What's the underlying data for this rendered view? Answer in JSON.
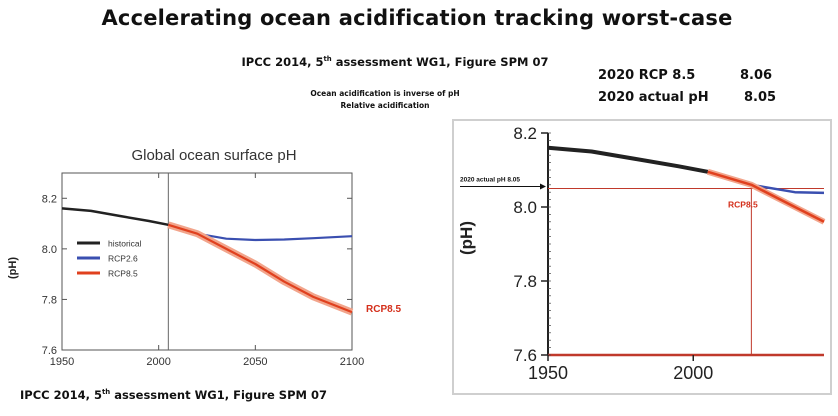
{
  "title": "Accelerating ocean acidification tracking worst-case",
  "source_top": "IPCC 2014, 5th assessment WG1, Figure SPM 07",
  "source_bottom": "IPCC 2014, 5th assessment WG1, Figure SPM 07",
  "notes": [
    "Ocean acidification is inverse of pH",
    "Relative acidification"
  ],
  "summary": [
    {
      "label": "2020 RCP 8.5",
      "value": "8.06"
    },
    {
      "label": "2020 actual pH",
      "value": "8.05"
    }
  ],
  "colors": {
    "historical": "#222222",
    "rcp26": "#3a4fb0",
    "rcp85": "#e0401e",
    "rcp85_label": "#d42e1a",
    "guide": "#c0392b"
  },
  "chart_data": [
    {
      "type": "line",
      "title": "Global ocean surface pH",
      "xlabel": "",
      "ylabel": "(pH)",
      "xlim": [
        1950,
        2100
      ],
      "ylim": [
        7.6,
        8.3
      ],
      "xticks": [
        "1950",
        "2000",
        "2050",
        "2100"
      ],
      "yticks": [
        "7.6",
        "7.8",
        "8.0",
        "8.2"
      ],
      "divider_year": 2005,
      "legend_position": "left-middle",
      "annotation": "RCP8.5",
      "series": [
        {
          "name": "historical",
          "x": [
            1950,
            1965,
            1980,
            1995,
            2005
          ],
          "y": [
            8.16,
            8.15,
            8.13,
            8.11,
            8.095
          ]
        },
        {
          "name": "RCP2.6",
          "x": [
            2005,
            2020,
            2035,
            2050,
            2065,
            2080,
            2100
          ],
          "y": [
            8.095,
            8.06,
            8.04,
            8.035,
            8.037,
            8.042,
            8.05
          ]
        },
        {
          "name": "RCP8.5",
          "x": [
            2005,
            2020,
            2035,
            2050,
            2065,
            2080,
            2100
          ],
          "y": [
            8.095,
            8.06,
            8.0,
            7.94,
            7.87,
            7.81,
            7.75
          ]
        }
      ]
    },
    {
      "type": "line",
      "title": "",
      "xlabel": "",
      "ylabel": "(pH)",
      "xlim": [
        1950,
        2045
      ],
      "ylim": [
        7.6,
        8.2
      ],
      "xticks": [
        "1950",
        "2000"
      ],
      "yticks": [
        "7.6",
        "7.8",
        "8.0",
        "8.2"
      ],
      "grid": false,
      "annotation": "RCP8.5",
      "marker_label": "2020 actual pH 8.05",
      "marker_value": 8.05,
      "marker_year": 2020,
      "series": [
        {
          "name": "historical",
          "x": [
            1950,
            1965,
            1980,
            1995,
            2005
          ],
          "y": [
            8.16,
            8.15,
            8.13,
            8.11,
            8.095
          ]
        },
        {
          "name": "RCP2.6",
          "x": [
            2005,
            2020,
            2035,
            2045
          ],
          "y": [
            8.095,
            8.06,
            8.04,
            8.038
          ]
        },
        {
          "name": "RCP8.5",
          "x": [
            2005,
            2020,
            2035,
            2045
          ],
          "y": [
            8.095,
            8.06,
            8.0,
            7.96
          ]
        }
      ]
    }
  ]
}
